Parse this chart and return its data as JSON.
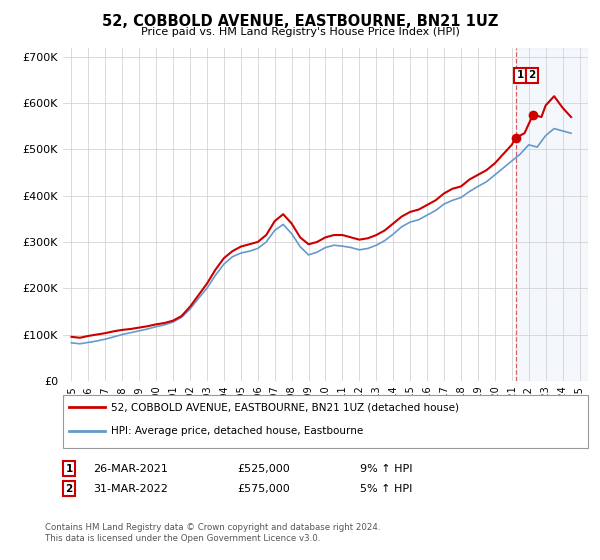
{
  "title": "52, COBBOLD AVENUE, EASTBOURNE, BN21 1UZ",
  "subtitle": "Price paid vs. HM Land Registry's House Price Index (HPI)",
  "legend_line1": "52, COBBOLD AVENUE, EASTBOURNE, BN21 1UZ (detached house)",
  "legend_line2": "HPI: Average price, detached house, Eastbourne",
  "sale1_date": "26-MAR-2021",
  "sale1_price": "£525,000",
  "sale1_hpi": "9% ↑ HPI",
  "sale1_year": 2021.23,
  "sale1_value": 525000,
  "sale2_date": "31-MAR-2022",
  "sale2_price": "£575,000",
  "sale2_hpi": "5% ↑ HPI",
  "sale2_year": 2022.25,
  "sale2_value": 575000,
  "footer1": "Contains HM Land Registry data © Crown copyright and database right 2024.",
  "footer2": "This data is licensed under the Open Government Licence v3.0.",
  "red_color": "#cc0000",
  "blue_color": "#6699cc",
  "background_color": "#ffffff",
  "grid_color": "#cccccc",
  "ylim": [
    0,
    720000
  ],
  "xlim": [
    1994.5,
    2025.5
  ],
  "years_red": [
    1995,
    1995.5,
    1996,
    1996.5,
    1997,
    1997.5,
    1998,
    1998.5,
    1999,
    1999.5,
    2000,
    2000.5,
    2001,
    2001.5,
    2002,
    2002.5,
    2003,
    2003.5,
    2004,
    2004.5,
    2005,
    2005.5,
    2006,
    2006.5,
    2007,
    2007.5,
    2008,
    2008.5,
    2009,
    2009.5,
    2010,
    2010.5,
    2011,
    2011.5,
    2012,
    2012.5,
    2013,
    2013.5,
    2014,
    2014.5,
    2015,
    2015.5,
    2016,
    2016.5,
    2017,
    2017.5,
    2018,
    2018.5,
    2019,
    2019.5,
    2020,
    2020.5,
    2021,
    2021.23,
    2021.75,
    2022,
    2022.25,
    2022.75,
    2023,
    2023.5,
    2024,
    2024.5
  ],
  "red_vals": [
    95000,
    93000,
    97000,
    100000,
    103000,
    107000,
    110000,
    112000,
    115000,
    118000,
    122000,
    125000,
    130000,
    140000,
    160000,
    185000,
    210000,
    240000,
    265000,
    280000,
    290000,
    295000,
    300000,
    315000,
    345000,
    360000,
    340000,
    310000,
    295000,
    300000,
    310000,
    315000,
    315000,
    310000,
    305000,
    308000,
    315000,
    325000,
    340000,
    355000,
    365000,
    370000,
    380000,
    390000,
    405000,
    415000,
    420000,
    435000,
    445000,
    455000,
    470000,
    490000,
    510000,
    525000,
    535000,
    555000,
    575000,
    570000,
    595000,
    615000,
    590000,
    570000
  ],
  "years_blue": [
    1995,
    1995.5,
    1996,
    1996.5,
    1997,
    1997.5,
    1998,
    1998.5,
    1999,
    1999.5,
    2000,
    2000.5,
    2001,
    2001.5,
    2002,
    2002.5,
    2003,
    2003.5,
    2004,
    2004.5,
    2005,
    2005.5,
    2006,
    2006.5,
    2007,
    2007.5,
    2008,
    2008.5,
    2009,
    2009.5,
    2010,
    2010.5,
    2011,
    2011.5,
    2012,
    2012.5,
    2013,
    2013.5,
    2014,
    2014.5,
    2015,
    2015.5,
    2016,
    2016.5,
    2017,
    2017.5,
    2018,
    2018.5,
    2019,
    2019.5,
    2020,
    2020.5,
    2021,
    2021.5,
    2022,
    2022.5,
    2023,
    2023.5,
    2024,
    2024.5
  ],
  "blue_vals": [
    82000,
    80000,
    83000,
    86000,
    90000,
    95000,
    100000,
    104000,
    108000,
    112000,
    117000,
    121000,
    127000,
    137000,
    155000,
    178000,
    200000,
    228000,
    252000,
    268000,
    276000,
    280000,
    286000,
    300000,
    325000,
    338000,
    318000,
    290000,
    272000,
    278000,
    288000,
    293000,
    291000,
    288000,
    283000,
    286000,
    293000,
    303000,
    317000,
    333000,
    343000,
    348000,
    358000,
    368000,
    382000,
    390000,
    396000,
    409000,
    420000,
    430000,
    445000,
    460000,
    475000,
    490000,
    510000,
    505000,
    530000,
    545000,
    540000,
    535000
  ]
}
